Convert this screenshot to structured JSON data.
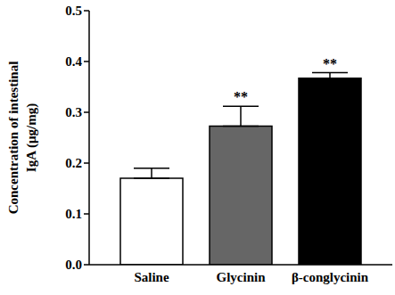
{
  "chart_data": {
    "type": "bar",
    "y_label": "Concentration of intestinal\nIgA (μg/mg)",
    "categories": [
      "Saline",
      "Glycinin",
      "β-conglycinin"
    ],
    "values": [
      0.17,
      0.273,
      0.367
    ],
    "errors": [
      0.02,
      0.039,
      0.011
    ],
    "colors": [
      "#ffffff",
      "#666666",
      "#000000"
    ],
    "ylim": [
      0,
      0.5
    ],
    "yticks": [
      {
        "value": 0,
        "label": "0.0"
      },
      0.1,
      0.2,
      0.3,
      0.4,
      0.5
    ],
    "annotations": [
      {
        "category": "Glycinin",
        "text": "**"
      },
      {
        "category": "β-conglycinin",
        "text": "**"
      }
    ]
  }
}
